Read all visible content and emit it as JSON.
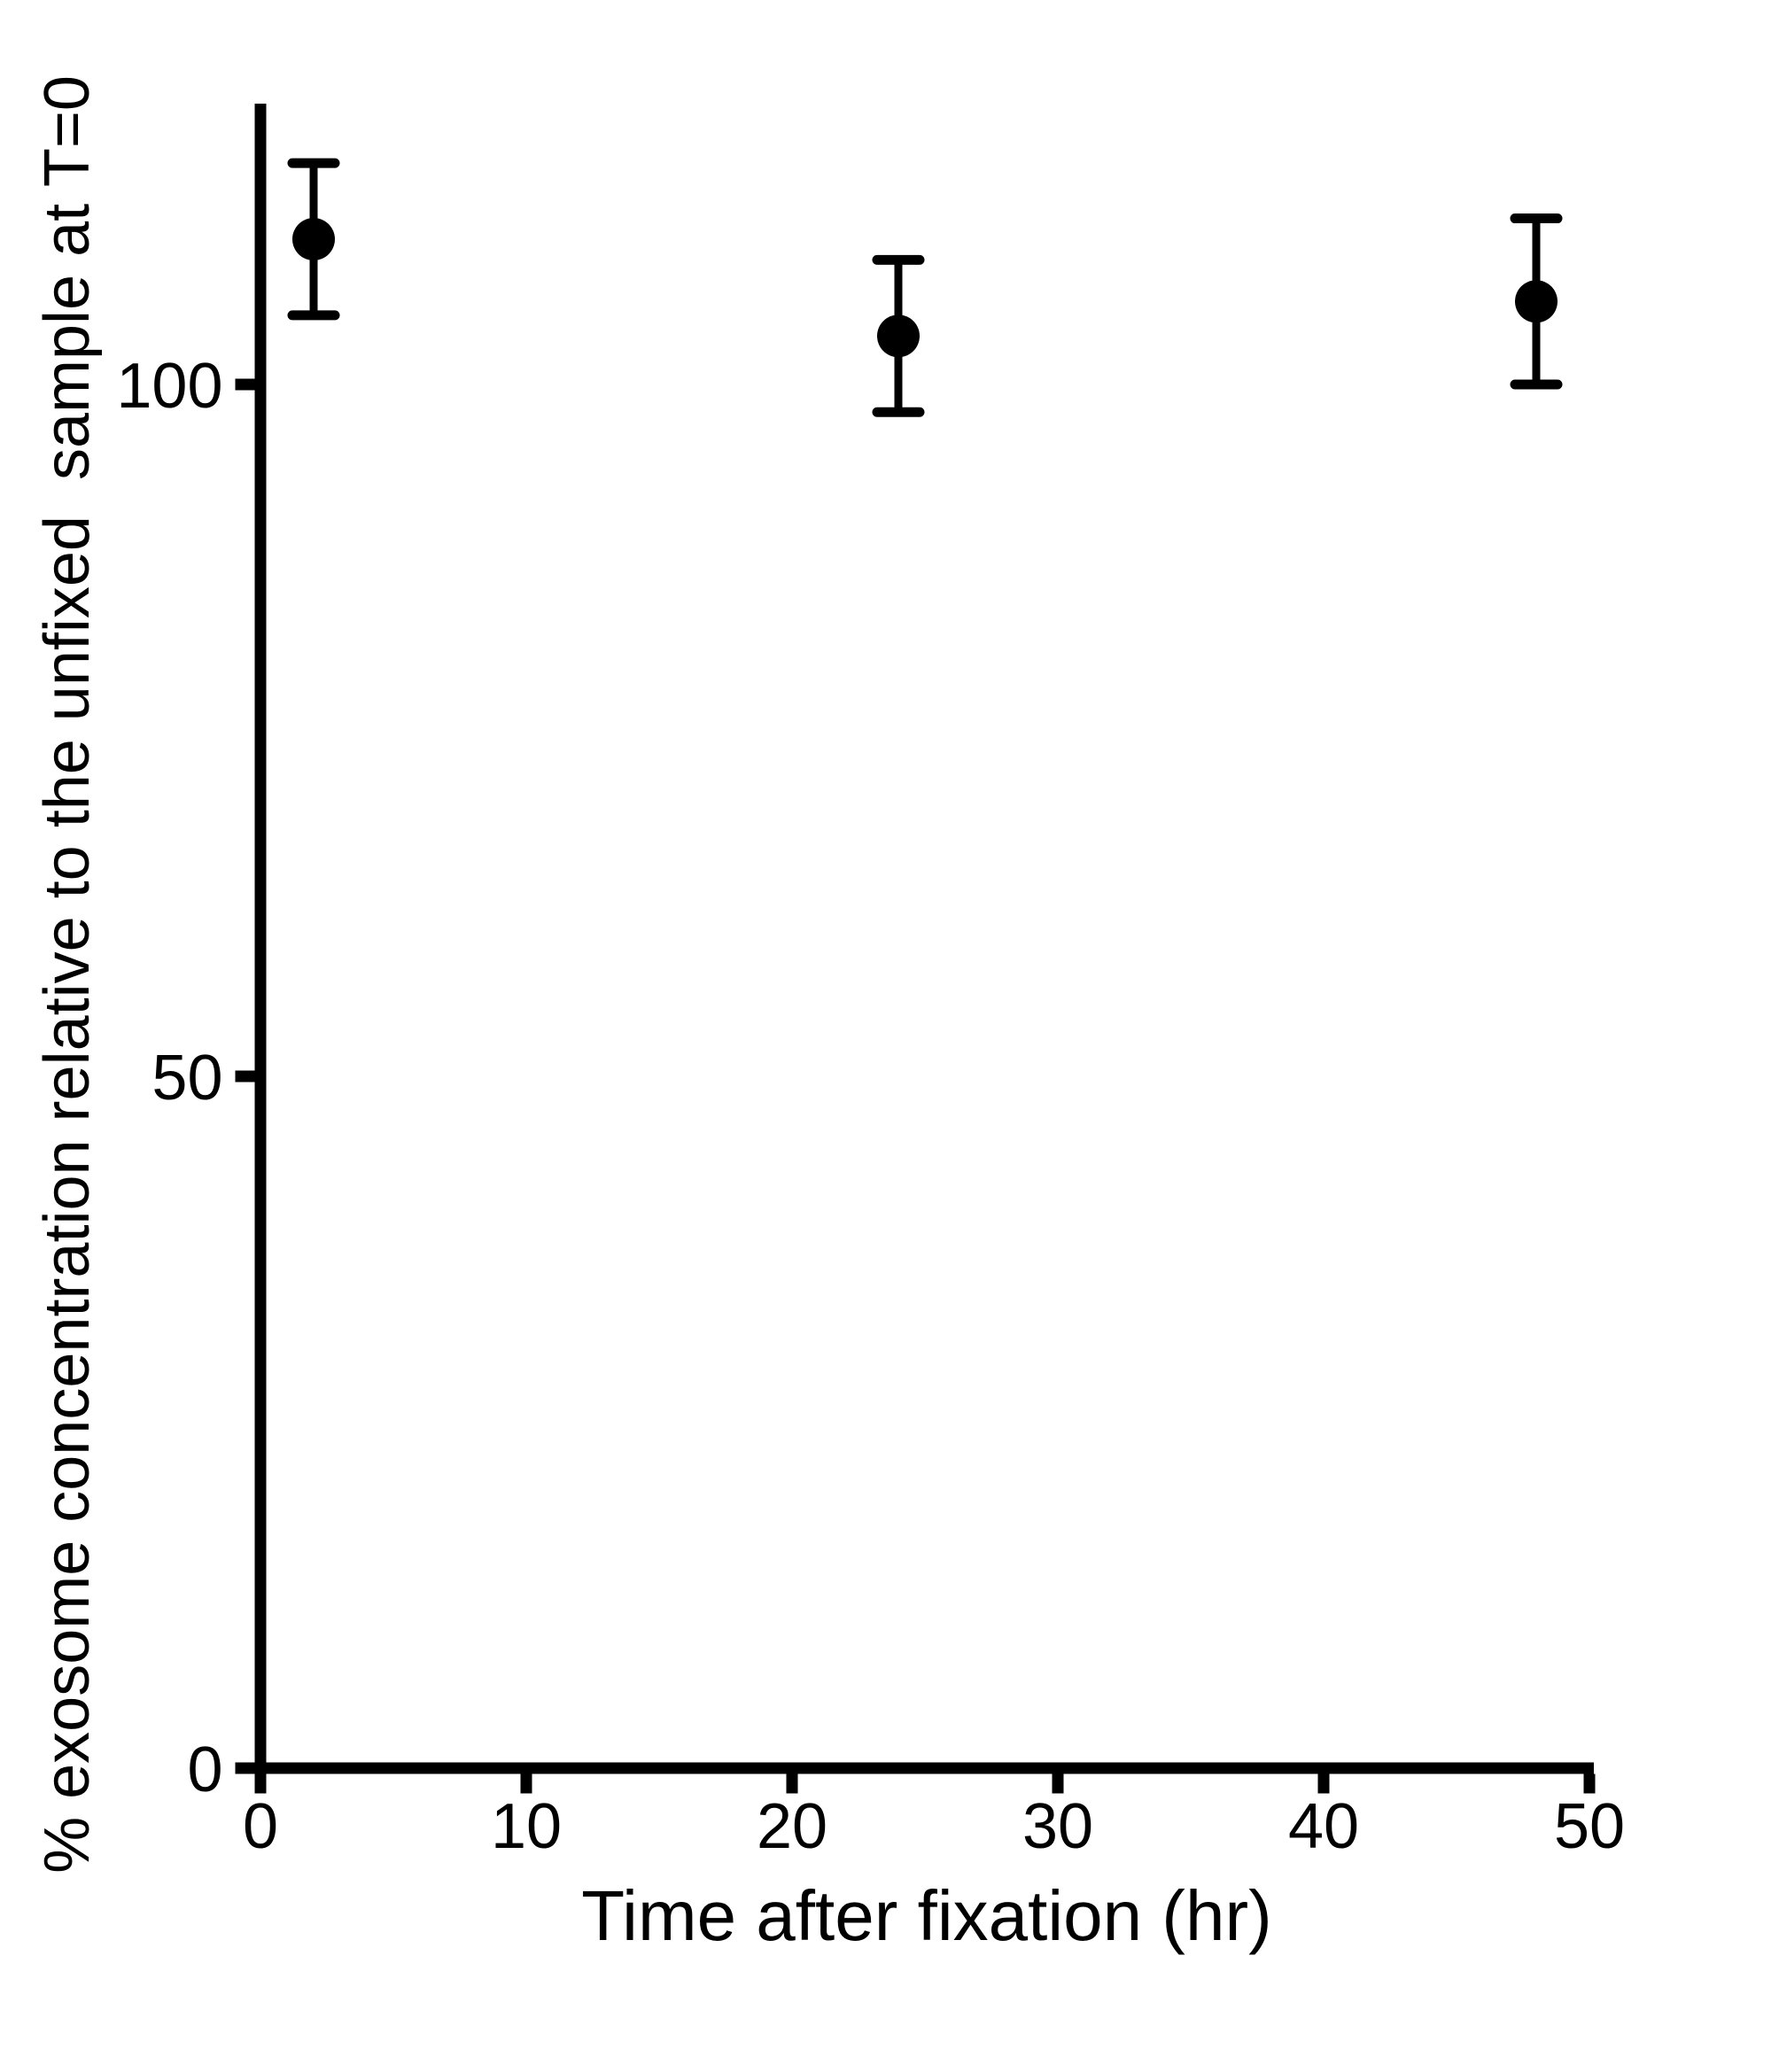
{
  "chart_data": {
    "type": "scatter",
    "title": "",
    "xlabel": "Time after fixation (hr)",
    "ylabel": "% exosome concentration relative to the unfixed  sample at T=0",
    "x_ticks": [
      0,
      10,
      20,
      30,
      40,
      50
    ],
    "y_ticks": [
      0,
      50,
      100
    ],
    "xlim": [
      0,
      50
    ],
    "ylim": [
      0,
      120
    ],
    "grid": false,
    "legend": false,
    "marker": "filled-circle",
    "marker_color": "#000000",
    "axis_color": "#000000",
    "error_bars": true,
    "series": [
      {
        "name": "exosome concentration",
        "points": [
          {
            "x": 2,
            "y": 110.5,
            "yerr": 5.5
          },
          {
            "x": 24,
            "y": 103.5,
            "yerr": 5.5
          },
          {
            "x": 48,
            "y": 106.0,
            "yerr": 6.0
          }
        ]
      }
    ]
  }
}
